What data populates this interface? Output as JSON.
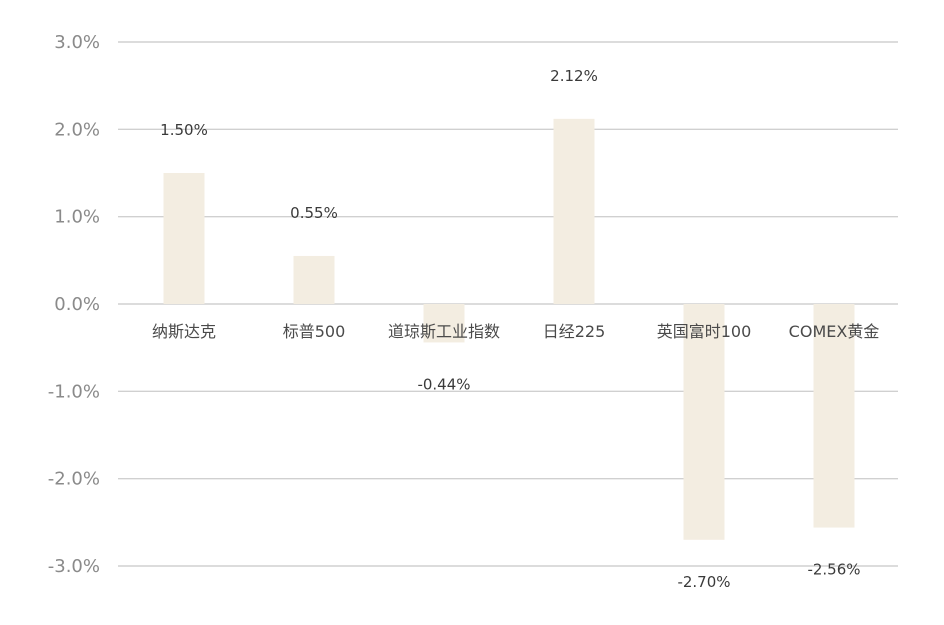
{
  "chart_data": {
    "type": "bar",
    "title": "",
    "xlabel": "",
    "ylabel": "",
    "categories": [
      "纳斯达克",
      "标普500",
      "道琼斯工业指数",
      "日经225",
      "英国富时100",
      "COMEX黄金"
    ],
    "values": [
      1.5,
      0.55,
      -0.44,
      2.12,
      -2.7,
      -2.56
    ],
    "value_labels": [
      "1.50%",
      "0.55%",
      "-0.44%",
      "2.12%",
      "-2.70%",
      "-2.56%"
    ],
    "ylim": [
      -3.0,
      3.0
    ],
    "yticks": [
      3.0,
      2.0,
      1.0,
      0.0,
      -1.0,
      -2.0,
      -3.0
    ],
    "ytick_labels": [
      "3.0%",
      "2.0%",
      "1.0%",
      "0.0%",
      "-1.0%",
      "-2.0%",
      "-3.0%"
    ],
    "grid": true,
    "legend": "none",
    "bar_color": "#f3ede1",
    "grid_color": "#d0d0d0"
  }
}
